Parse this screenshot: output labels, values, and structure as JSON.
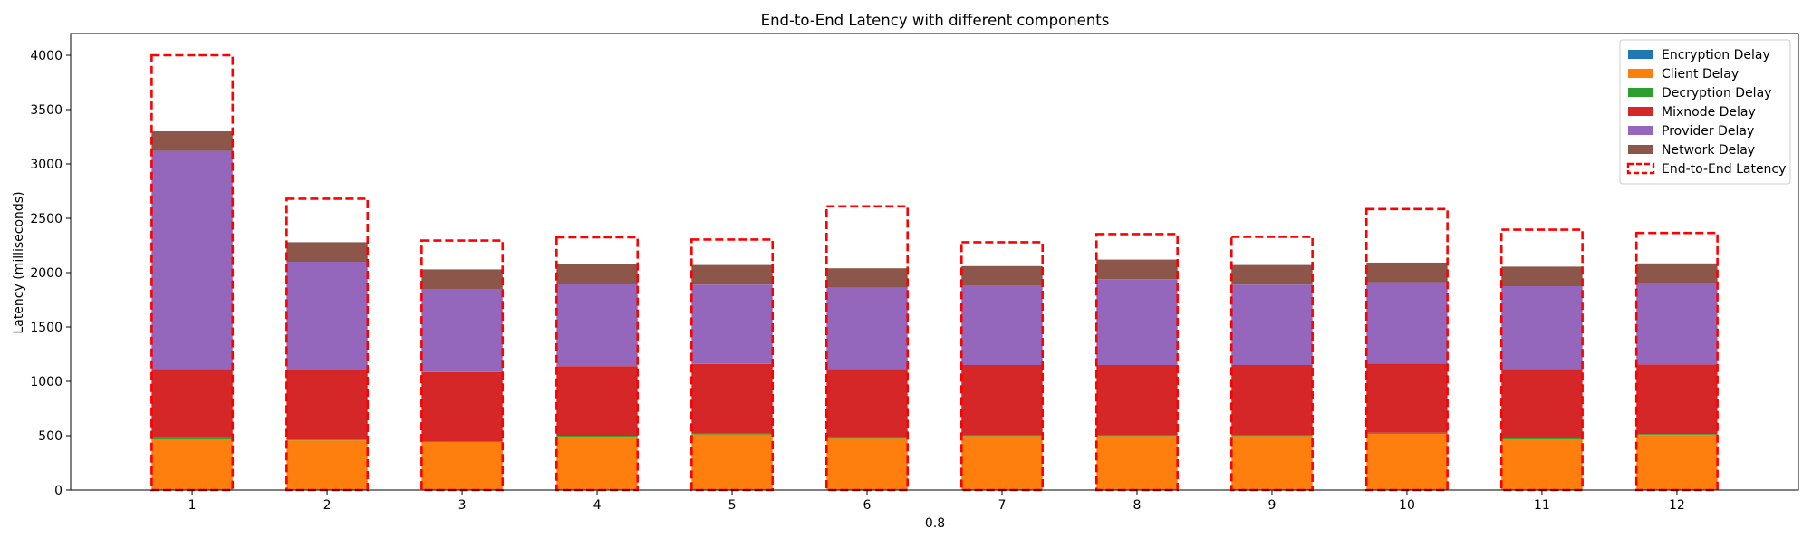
{
  "chart_data": {
    "type": "bar",
    "stacked": true,
    "title": "End-to-End Latency with different components",
    "xlabel": "0.8",
    "ylabel": "Latency (milliseconds)",
    "categories": [
      "1",
      "2",
      "3",
      "4",
      "5",
      "6",
      "7",
      "8",
      "9",
      "10",
      "11",
      "12"
    ],
    "ylim": [
      0,
      4200
    ],
    "yticks": [
      0,
      500,
      1000,
      1500,
      2000,
      2500,
      3000,
      3500,
      4000
    ],
    "grid": false,
    "legend_position": "top-right",
    "series": [
      {
        "name": "Encryption Delay",
        "color": "#1f77b4",
        "values": [
          2,
          2,
          2,
          2,
          2,
          2,
          2,
          2,
          2,
          2,
          2,
          2
        ]
      },
      {
        "name": "Client Delay",
        "color": "#ff7f0e",
        "values": [
          465,
          455,
          440,
          490,
          510,
          470,
          495,
          495,
          495,
          515,
          465,
          505
        ]
      },
      {
        "name": "Decryption Delay",
        "color": "#2ca02c",
        "values": [
          10,
          8,
          8,
          8,
          8,
          8,
          8,
          8,
          8,
          10,
          8,
          8
        ]
      },
      {
        "name": "Mixnode Delay",
        "color": "#d62728",
        "values": [
          635,
          640,
          635,
          640,
          640,
          635,
          645,
          645,
          645,
          635,
          640,
          640
        ]
      },
      {
        "name": "Provider Delay",
        "color": "#9467bd",
        "values": [
          2008,
          995,
          765,
          760,
          730,
          745,
          730,
          790,
          740,
          750,
          760,
          750
        ]
      },
      {
        "name": "Network Delay",
        "color": "#8c564b",
        "values": [
          180,
          180,
          180,
          180,
          180,
          180,
          180,
          180,
          180,
          180,
          180,
          180
        ]
      }
    ],
    "end_to_end": {
      "name": "End-to-End Latency",
      "color": "#ff0000",
      "values": [
        4000,
        2680,
        2295,
        2325,
        2305,
        2610,
        2280,
        2355,
        2330,
        2585,
        2395,
        2365
      ]
    }
  }
}
